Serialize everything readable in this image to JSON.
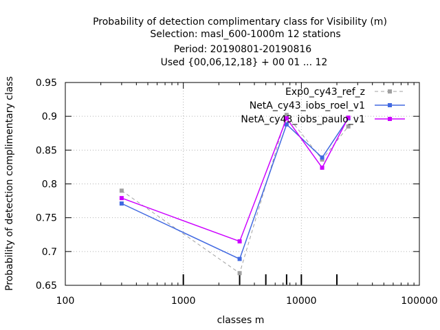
{
  "chart_data": {
    "type": "line",
    "title_lines": [
      "Probability of detection complimentary class  for Visibility (m)",
      "Selection: masl_600-1000m     12 stations",
      "Period: 20190801-20190816",
      "Used {00,06,12,18} + 00 01 ... 12"
    ],
    "xlabel": "classes m",
    "ylabel": "Probability of detection complimentary class",
    "x_scale": "log",
    "xlim": [
      100,
      100000
    ],
    "ylim": [
      0.65,
      0.95
    ],
    "x_ticks": [
      100,
      1000,
      10000,
      100000
    ],
    "x_tick_labels": [
      "100",
      "1000",
      "10000",
      "100000"
    ],
    "y_ticks": [
      0.65,
      0.7,
      0.75,
      0.8,
      0.85,
      0.9,
      0.95
    ],
    "y_tick_labels": [
      "0.65",
      "0.7",
      "0.75",
      "0.8",
      "0.85",
      "0.9",
      "0.95"
    ],
    "grid": true,
    "legend_position": "top-right",
    "class_markers": [
      1000,
      3000,
      5000,
      7500,
      10000,
      20000
    ],
    "series": [
      {
        "name": "Exp0_cy43_ref_z",
        "color": "#a0a0a0",
        "dash": true,
        "x": [
          300,
          3000,
          7500,
          15000,
          25000
        ],
        "y": [
          0.79,
          0.668,
          0.902,
          0.836,
          0.885
        ]
      },
      {
        "name": "NetA_cy43_iobs_roel_v1",
        "color": "#4169e1",
        "dash": false,
        "x": [
          300,
          3000,
          7500,
          15000,
          25000
        ],
        "y": [
          0.771,
          0.689,
          0.888,
          0.839,
          0.897
        ]
      },
      {
        "name": "NetA_cy43_iobs_paulo_v1",
        "color": "#cc00ff",
        "dash": false,
        "x": [
          300,
          3000,
          7500,
          15000,
          25000
        ],
        "y": [
          0.779,
          0.715,
          0.897,
          0.824,
          0.898
        ]
      }
    ]
  }
}
